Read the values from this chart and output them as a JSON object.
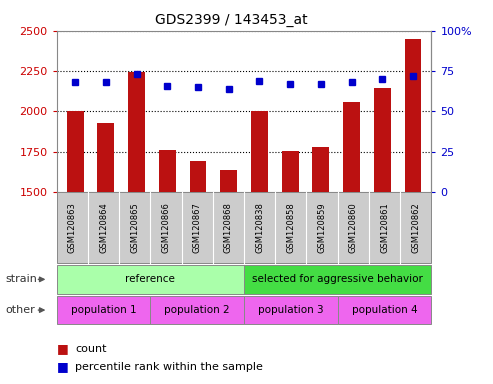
{
  "title": "GDS2399 / 143453_at",
  "samples": [
    "GSM120863",
    "GSM120864",
    "GSM120865",
    "GSM120866",
    "GSM120867",
    "GSM120868",
    "GSM120838",
    "GSM120858",
    "GSM120859",
    "GSM120860",
    "GSM120861",
    "GSM120862"
  ],
  "counts": [
    2000,
    1930,
    2245,
    1760,
    1690,
    1635,
    2005,
    1755,
    1780,
    2055,
    2145,
    2450
  ],
  "percentile_ranks": [
    68,
    68,
    73,
    66,
    65,
    64,
    69,
    67,
    67,
    68,
    70,
    72
  ],
  "ylim_left": [
    1500,
    2500
  ],
  "ylim_right": [
    0,
    100
  ],
  "yticks_left": [
    1500,
    1750,
    2000,
    2250,
    2500
  ],
  "yticks_right": [
    0,
    25,
    50,
    75,
    100
  ],
  "bar_color": "#bb1111",
  "dot_color": "#0000cc",
  "strain_groups": [
    {
      "label": "reference",
      "start": 0,
      "end": 6,
      "color": "#aaffaa"
    },
    {
      "label": "selected for aggressive behavior",
      "start": 6,
      "end": 12,
      "color": "#44dd44"
    }
  ],
  "other_groups": [
    {
      "label": "population 1",
      "start": 0,
      "end": 3,
      "color": "#ee66ee"
    },
    {
      "label": "population 2",
      "start": 3,
      "end": 6,
      "color": "#ee66ee"
    },
    {
      "label": "population 3",
      "start": 6,
      "end": 9,
      "color": "#ee66ee"
    },
    {
      "label": "population 4",
      "start": 9,
      "end": 12,
      "color": "#ee66ee"
    }
  ],
  "legend_count_label": "count",
  "legend_pct_label": "percentile rank within the sample",
  "strain_label": "strain",
  "other_label": "other",
  "left_axis_color": "#cc0000",
  "right_axis_color": "#0000cc",
  "bg_color": "#ffffff",
  "plot_bg_color": "#ffffff",
  "tick_area_color": "#cccccc"
}
